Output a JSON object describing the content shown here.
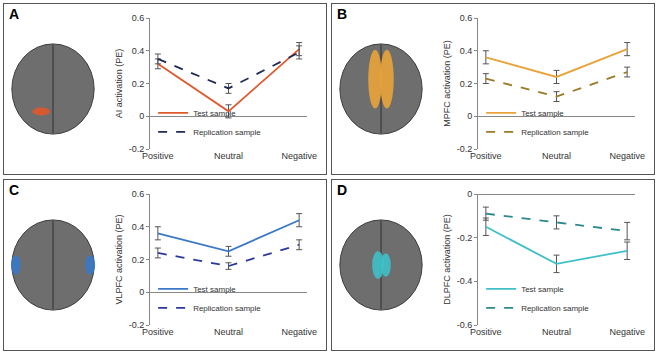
{
  "chart_data": [
    {
      "type": "line",
      "title": "A",
      "y_label": "AI activation (PE)",
      "categories": [
        "Positive",
        "Neutral",
        "Negative"
      ],
      "series": [
        {
          "name": "Test sample",
          "color": "#e0582c",
          "line_style": "solid",
          "values": [
            0.32,
            0.03,
            0.41
          ],
          "errors": [
            0.03,
            0.04,
            0.04
          ]
        },
        {
          "name": "Replication sample",
          "color": "#1f2a55",
          "line_style": "dashed",
          "values": [
            0.35,
            0.17,
            0.39
          ],
          "errors": [
            0.03,
            0.03,
            0.04
          ]
        }
      ],
      "ylim": [
        -0.2,
        0.6
      ],
      "yticks": [
        -0.2,
        0,
        0.2,
        0.4,
        0.6
      ],
      "legend": "lower left"
    },
    {
      "type": "line",
      "title": "B",
      "y_label": "MPFC activation (PE)",
      "categories": [
        "Positive",
        "Neutral",
        "Negative"
      ],
      "series": [
        {
          "name": "Test sample",
          "color": "#e8a33a",
          "line_style": "solid",
          "values": [
            0.36,
            0.24,
            0.41
          ],
          "errors": [
            0.04,
            0.04,
            0.04
          ]
        },
        {
          "name": "Replication sample",
          "color": "#9a7a22",
          "line_style": "dashed",
          "values": [
            0.23,
            0.12,
            0.27
          ],
          "errors": [
            0.03,
            0.03,
            0.03
          ]
        }
      ],
      "ylim": [
        -0.2,
        0.6
      ],
      "yticks": [
        -0.2,
        0,
        0.2,
        0.4,
        0.6
      ],
      "legend": "lower left"
    },
    {
      "type": "line",
      "title": "C",
      "y_label": "VLPFC activation (PE)",
      "categories": [
        "Positive",
        "Neutral",
        "Negative"
      ],
      "series": [
        {
          "name": "Test sample",
          "color": "#3a78c8",
          "line_style": "solid",
          "values": [
            0.36,
            0.25,
            0.44
          ],
          "errors": [
            0.04,
            0.03,
            0.04
          ]
        },
        {
          "name": "Replication sample",
          "color": "#2b3a9a",
          "line_style": "dashed",
          "values": [
            0.24,
            0.16,
            0.29
          ],
          "errors": [
            0.03,
            0.02,
            0.03
          ]
        }
      ],
      "ylim": [
        -0.2,
        0.6
      ],
      "yticks": [
        -0.2,
        0,
        0.2,
        0.4,
        0.6
      ],
      "legend": "lower left"
    },
    {
      "type": "line",
      "title": "D",
      "y_label": "DLPFC activation (PE)",
      "categories": [
        "Positive",
        "Neutral",
        "Negative"
      ],
      "series": [
        {
          "name": "Test sample",
          "color": "#3fc0c8",
          "line_style": "solid",
          "values": [
            -0.15,
            -0.32,
            -0.26
          ],
          "errors": [
            0.04,
            0.04,
            0.04
          ]
        },
        {
          "name": "Replication sample",
          "color": "#2a8a8c",
          "line_style": "dashed",
          "values": [
            -0.09,
            -0.13,
            -0.17
          ],
          "errors": [
            0.03,
            0.03,
            0.04
          ]
        }
      ],
      "ylim": [
        -0.6,
        0
      ],
      "yticks": [
        -0.6,
        -0.4,
        -0.2,
        0
      ],
      "legend": "lower left"
    }
  ]
}
